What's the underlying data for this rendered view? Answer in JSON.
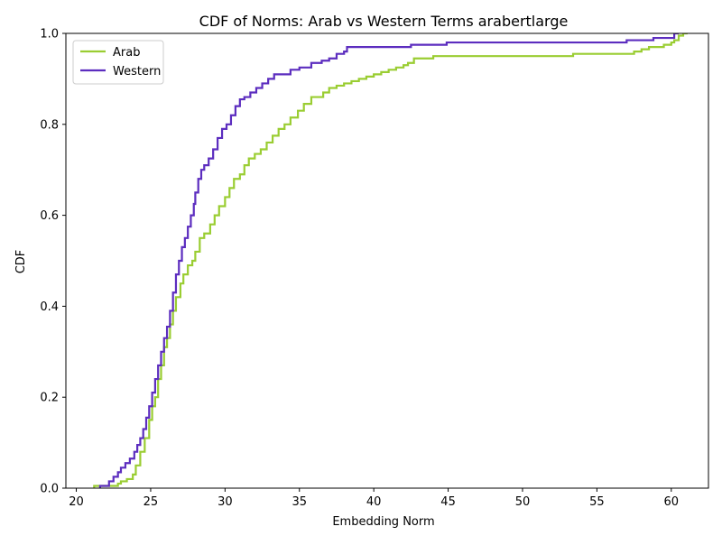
{
  "chart_data": {
    "type": "line",
    "step": true,
    "title": "CDF of Norms: Arab vs Western Terms arabertlarge",
    "xlabel": "Embedding Norm",
    "ylabel": "CDF",
    "xlim": [
      19.3,
      62.5
    ],
    "ylim": [
      0.0,
      1.0
    ],
    "xticks": [
      20,
      25,
      30,
      35,
      40,
      45,
      50,
      55,
      60
    ],
    "yticks": [
      0.0,
      0.2,
      0.4,
      0.6,
      0.8,
      1.0
    ],
    "xtick_labels": [
      "20",
      "25",
      "30",
      "35",
      "40",
      "45",
      "50",
      "55",
      "60"
    ],
    "ytick_labels": [
      "0.0",
      "0.2",
      "0.4",
      "0.6",
      "0.8",
      "1.0"
    ],
    "grid": false,
    "legend": {
      "position": "top-left"
    },
    "series": [
      {
        "name": "Arab",
        "color": "#9acd32",
        "x": [
          21.2,
          22.5,
          22.8,
          23.0,
          23.4,
          23.8,
          24.0,
          24.3,
          24.6,
          24.9,
          25.1,
          25.3,
          25.5,
          25.7,
          25.9,
          26.1,
          26.3,
          26.5,
          26.7,
          27.0,
          27.2,
          27.5,
          27.8,
          28.0,
          28.3,
          28.6,
          29.0,
          29.3,
          29.6,
          30.0,
          30.3,
          30.6,
          31.0,
          31.3,
          31.6,
          32.0,
          32.4,
          32.8,
          33.2,
          33.6,
          34.0,
          34.4,
          34.9,
          35.3,
          35.8,
          36.6,
          37.0,
          37.5,
          38.0,
          38.5,
          39.0,
          39.5,
          40.0,
          40.5,
          41.0,
          41.5,
          42.0,
          42.3,
          42.7,
          43.2,
          44.0,
          53.4,
          57.0,
          57.5,
          58.0,
          58.5,
          59.0,
          59.5,
          60.0,
          60.2,
          60.5,
          60.8
        ],
        "y": [
          0.005,
          0.005,
          0.01,
          0.015,
          0.02,
          0.03,
          0.05,
          0.08,
          0.11,
          0.15,
          0.18,
          0.2,
          0.24,
          0.27,
          0.31,
          0.33,
          0.36,
          0.39,
          0.42,
          0.45,
          0.47,
          0.49,
          0.5,
          0.52,
          0.55,
          0.56,
          0.58,
          0.6,
          0.62,
          0.64,
          0.66,
          0.68,
          0.69,
          0.71,
          0.725,
          0.735,
          0.745,
          0.76,
          0.775,
          0.79,
          0.8,
          0.815,
          0.83,
          0.845,
          0.86,
          0.87,
          0.88,
          0.885,
          0.89,
          0.895,
          0.9,
          0.905,
          0.91,
          0.915,
          0.92,
          0.925,
          0.93,
          0.935,
          0.945,
          0.945,
          0.95,
          0.955,
          0.955,
          0.96,
          0.965,
          0.97,
          0.97,
          0.975,
          0.98,
          0.985,
          0.995,
          1.0
        ]
      },
      {
        "name": "Western",
        "color": "#5c2dbf",
        "x": [
          21.6,
          22.2,
          22.5,
          22.8,
          23.0,
          23.3,
          23.6,
          23.9,
          24.1,
          24.3,
          24.5,
          24.7,
          24.9,
          25.1,
          25.3,
          25.5,
          25.7,
          25.9,
          26.1,
          26.3,
          26.5,
          26.7,
          26.9,
          27.1,
          27.3,
          27.5,
          27.7,
          27.9,
          28.0,
          28.2,
          28.4,
          28.6,
          28.9,
          29.2,
          29.5,
          29.8,
          30.1,
          30.4,
          30.7,
          31.0,
          31.3,
          31.7,
          32.1,
          32.5,
          32.9,
          33.3,
          33.8,
          34.4,
          35.0,
          35.8,
          36.5,
          37.0,
          37.5,
          38.0,
          38.2,
          42.5,
          44.9,
          57.0,
          58.8,
          60.2
        ],
        "y": [
          0.005,
          0.015,
          0.025,
          0.035,
          0.045,
          0.055,
          0.065,
          0.08,
          0.095,
          0.11,
          0.13,
          0.155,
          0.18,
          0.21,
          0.24,
          0.27,
          0.3,
          0.33,
          0.355,
          0.39,
          0.43,
          0.47,
          0.5,
          0.53,
          0.55,
          0.575,
          0.6,
          0.625,
          0.65,
          0.68,
          0.7,
          0.71,
          0.725,
          0.745,
          0.77,
          0.79,
          0.8,
          0.82,
          0.84,
          0.855,
          0.86,
          0.87,
          0.88,
          0.89,
          0.9,
          0.91,
          0.91,
          0.92,
          0.925,
          0.935,
          0.94,
          0.945,
          0.955,
          0.96,
          0.97,
          0.975,
          0.98,
          0.985,
          0.99,
          1.0
        ]
      }
    ]
  }
}
